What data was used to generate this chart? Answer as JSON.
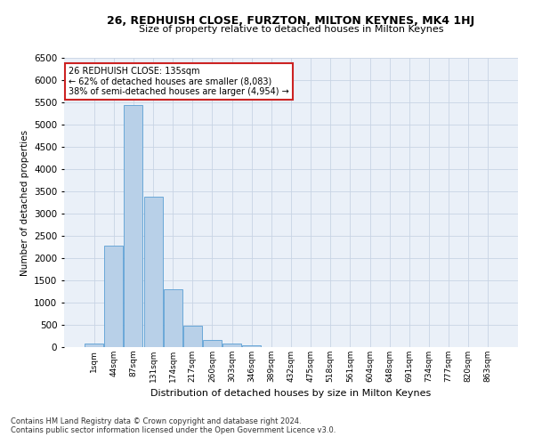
{
  "title1": "26, REDHUISH CLOSE, FURZTON, MILTON KEYNES, MK4 1HJ",
  "title2": "Size of property relative to detached houses in Milton Keynes",
  "xlabel": "Distribution of detached houses by size in Milton Keynes",
  "ylabel": "Number of detached properties",
  "footnote1": "Contains HM Land Registry data © Crown copyright and database right 2024.",
  "footnote2": "Contains public sector information licensed under the Open Government Licence v3.0.",
  "annotation_title": "26 REDHUISH CLOSE: 135sqm",
  "annotation_line1": "← 62% of detached houses are smaller (8,083)",
  "annotation_line2": "38% of semi-detached houses are larger (4,954) →",
  "categories": [
    "1sqm",
    "44sqm",
    "87sqm",
    "131sqm",
    "174sqm",
    "217sqm",
    "260sqm",
    "303sqm",
    "346sqm",
    "389sqm",
    "432sqm",
    "475sqm",
    "518sqm",
    "561sqm",
    "604sqm",
    "648sqm",
    "691sqm",
    "734sqm",
    "777sqm",
    "820sqm",
    "863sqm"
  ],
  "values": [
    75,
    2280,
    5440,
    3390,
    1300,
    480,
    160,
    80,
    50,
    0,
    0,
    0,
    0,
    0,
    0,
    0,
    0,
    0,
    0,
    0,
    0
  ],
  "bar_color": "#b8d0e8",
  "bar_edge_color": "#5a9fd4",
  "background_color": "#eaf0f8",
  "grid_color": "#c8d4e4",
  "highlight_color": "#cc2222",
  "ylim": [
    0,
    6500
  ],
  "yticks": [
    0,
    500,
    1000,
    1500,
    2000,
    2500,
    3000,
    3500,
    4000,
    4500,
    5000,
    5500,
    6000,
    6500
  ]
}
